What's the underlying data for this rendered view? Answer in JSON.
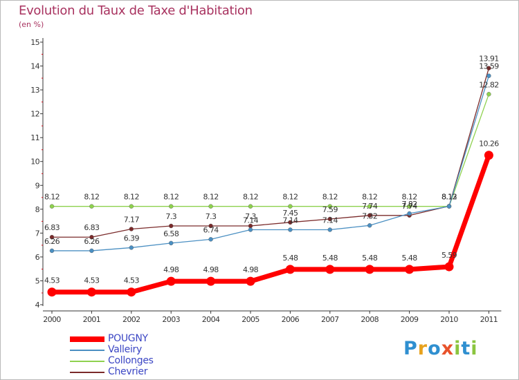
{
  "title": "Evolution du Taux de Taxe d'Habitation",
  "subtitle": "(en %)",
  "brand": {
    "letters": [
      {
        "char": "P",
        "color": "#2f8fd0"
      },
      {
        "char": "r",
        "color": "#e8a21d"
      },
      {
        "char": "o",
        "color": "#2f8fd0"
      },
      {
        "char": "x",
        "color": "#e8522a"
      },
      {
        "char": "i",
        "color": "#8bc53f"
      },
      {
        "char": "t",
        "color": "#2f8fd0"
      },
      {
        "char": "i",
        "color": "#8bc53f"
      }
    ]
  },
  "chart_data": {
    "type": "line",
    "x": [
      "2000",
      "2001",
      "2002",
      "2003",
      "2004",
      "2005",
      "2006",
      "2007",
      "2008",
      "2009",
      "2010",
      "2011"
    ],
    "yticks": [
      "4",
      "5",
      "6",
      "7",
      "8",
      "9",
      "10",
      "11",
      "12",
      "13",
      "14",
      "15"
    ],
    "ylim": [
      4,
      15
    ],
    "grid": false,
    "legend_position": "bottom-left",
    "series": [
      {
        "name": "POUGNY",
        "color": "#ff0000",
        "values": [
          4.53,
          4.53,
          4.53,
          4.98,
          4.98,
          4.98,
          5.48,
          5.48,
          5.48,
          5.48,
          5.59,
          10.26
        ],
        "labels": [
          "4.53",
          "4.53",
          "4.53",
          "4.98",
          "4.98",
          "4.98",
          "5.48",
          "5.48",
          "5.48",
          "5.48",
          "5.59",
          "10.26"
        ]
      },
      {
        "name": "Valleiry",
        "color": "#4a8fc2",
        "values": [
          6.26,
          6.26,
          6.39,
          6.58,
          6.74,
          7.14,
          7.14,
          7.14,
          7.32,
          7.82,
          8.12,
          13.59
        ],
        "labels": [
          "6.26",
          "6.26",
          "6.39",
          "6.58",
          "6.74",
          "7.14",
          "7.14",
          "7.14",
          "7.32",
          "7.82",
          "8.12",
          "13.59"
        ]
      },
      {
        "name": "Collonges",
        "color": "#8ed14e",
        "values": [
          8.12,
          8.12,
          8.12,
          8.12,
          8.12,
          8.12,
          8.12,
          8.12,
          8.12,
          8.12,
          8.12,
          12.82
        ],
        "labels": [
          "8.12",
          "8.12",
          "8.12",
          "8.12",
          "8.12",
          "8.12",
          "8.12",
          "8.12",
          "8.12",
          "8.12",
          "8.12",
          "12.82"
        ]
      },
      {
        "name": "Chevrier",
        "color": "#7a2a2a",
        "values": [
          6.83,
          6.83,
          7.17,
          7.3,
          7.3,
          7.3,
          7.45,
          7.59,
          7.74,
          7.74,
          8.13,
          13.91
        ],
        "labels": [
          "6.83",
          "6.83",
          "7.17",
          "7.3",
          "7.3",
          "7.3",
          "7.45",
          "7.59",
          "7.74",
          "7.74",
          "8.13",
          "13.91"
        ]
      }
    ]
  }
}
